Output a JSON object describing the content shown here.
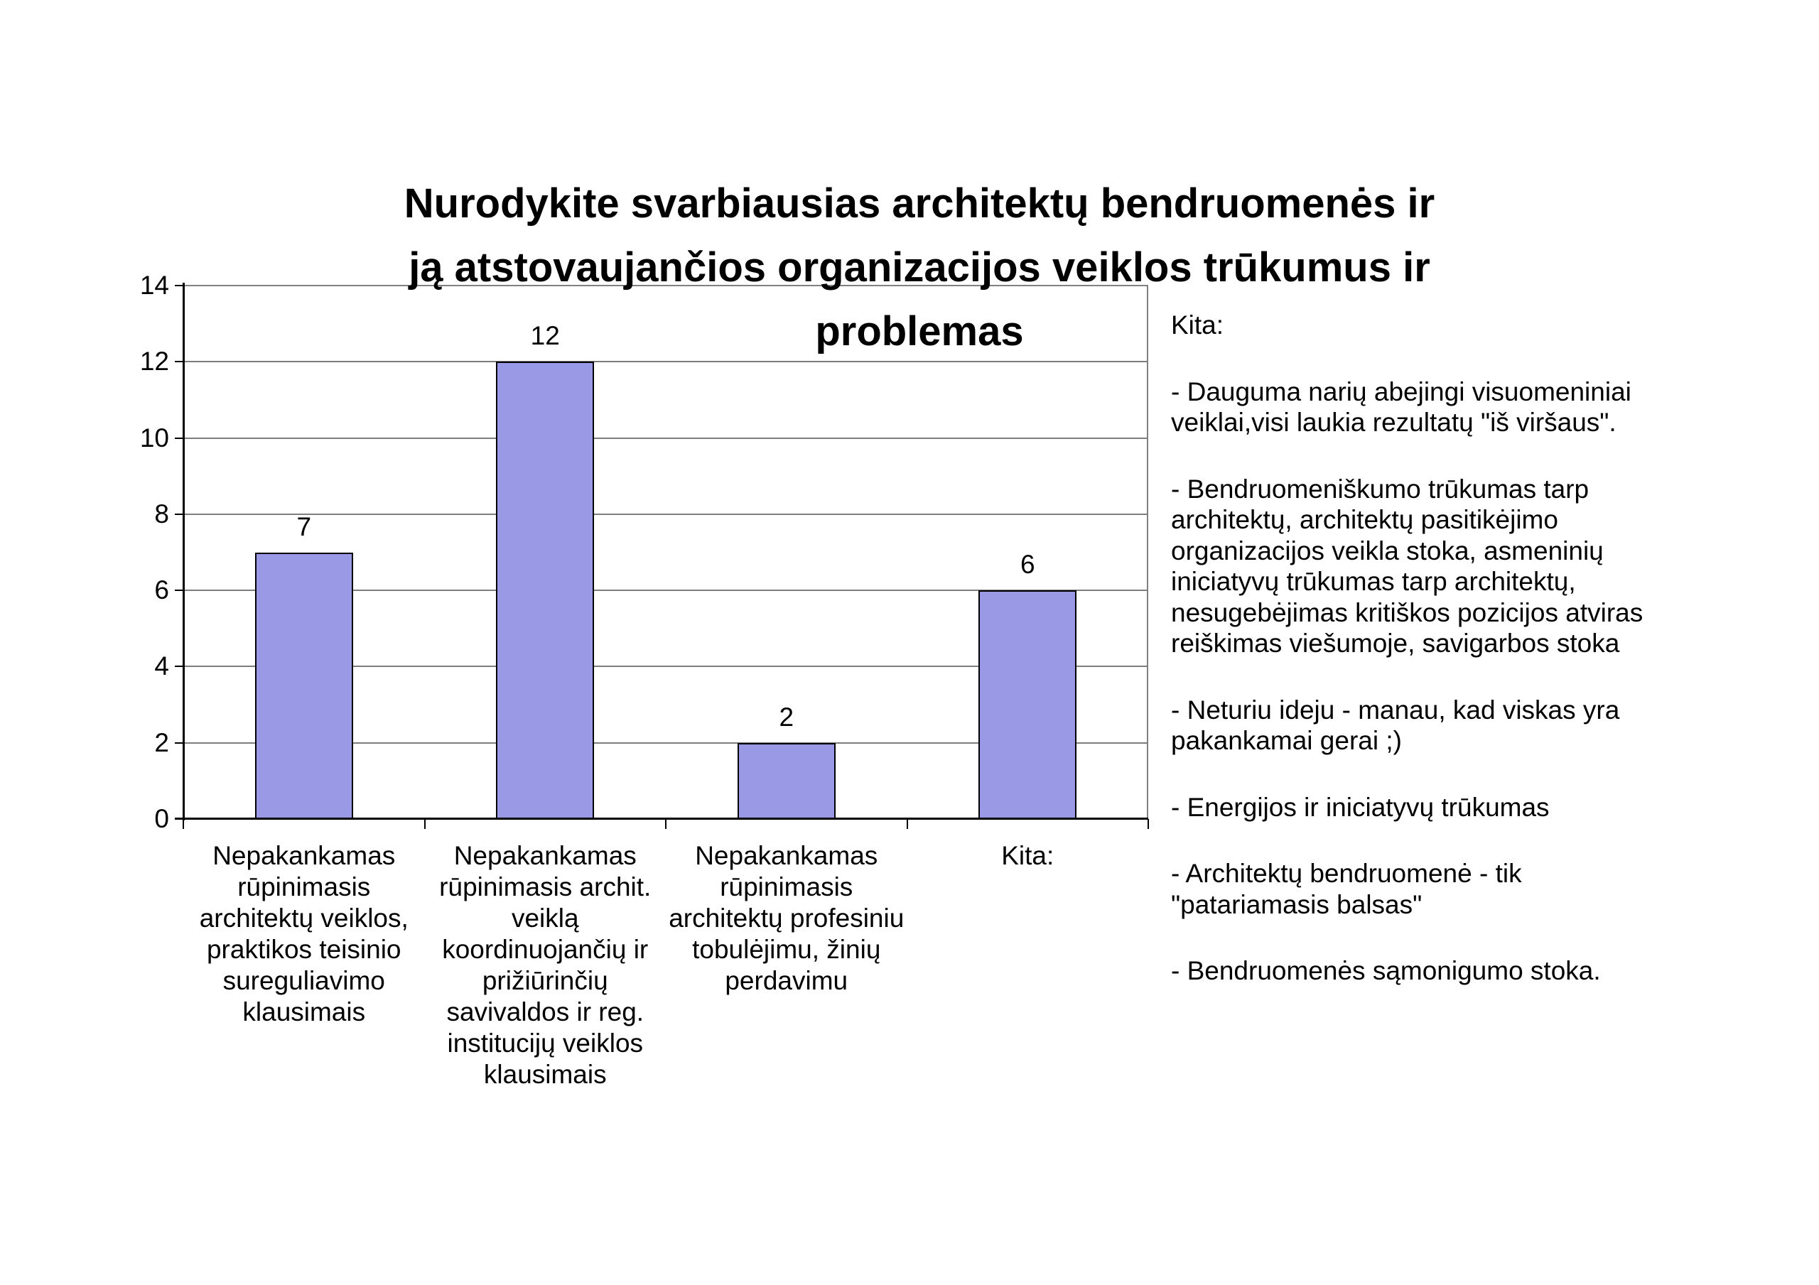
{
  "display": {
    "title": "Nurodykite svarbiausias architektų bendruomenės ir\nją atstovaujančios organizacijos veiklos trūkumus ir\nproblemas",
    "category_labels": [
      "Nepakankamas\nrūpinimasis\narchitektų veiklos,\npraktikos teisinio\nsureguliavimo\nklausimais",
      "Nepakankamas\nrūpinimasis archit.\nveiklą\nkoordinuojančių ir\nprižiūrinčių\nsavivaldos ir reg.\ninstitucijų veiklos\nklausimais",
      "Nepakankamas\nrūpinimasis\narchitektų profesiniu\ntobulėjimu, žinių\nperdavimu",
      "Kita:"
    ]
  },
  "chart_data": {
    "type": "bar",
    "title": "Nurodykite svarbiausias architektų bendruomenės ir ją atstovaujančios organizacijos veiklos trūkumus ir problemas",
    "categories": [
      "Nepakankamas rūpinimasis architektų veiklos, praktikos teisinio sureguliavimo klausimais",
      "Nepakankamas rūpinimasis archit. veiklą koordinuojančių ir prižiūrinčių savivaldos ir reg. institucijų veiklos klausimais",
      "Nepakankamas rūpinimasis architektų profesiniu tobulėjimu, žinių perdavimu",
      "Kita:"
    ],
    "values": [
      7,
      12,
      2,
      6
    ],
    "xlabel": "",
    "ylabel": "",
    "ylim": [
      0,
      14
    ],
    "yticks": [
      0,
      2,
      4,
      6,
      8,
      10,
      12,
      14
    ],
    "grid": "horizontal",
    "legend": "none",
    "bar_color": "#9999E6",
    "bar_border_color": "#000000",
    "gridline_color": "#808080",
    "axis_color": "#000000"
  },
  "kita_panel": {
    "heading": "Kita:",
    "notes": [
      "-  Dauguma narių abejingi visuomeniniai\nveiklai,visi laukia rezultatų \"iš viršaus\".",
      "- Bendruomeniškumo trūkumas tarp\narchitektų, architektų pasitikėjimo\norganizacijos veikla stoka, asmeninių\niniciatyvų trūkumas tarp architektų,\nnesugebėjimas kritiškos pozicijos atviras\nreiškimas viešumoje, savigarbos stoka",
      "- Neturiu ideju - manau, kad viskas yra\npakankamai gerai ;)",
      "- Energijos ir iniciatyvų trūkumas",
      "- Architektų bendruomenė - tik\n\"patariamasis balsas\"",
      "- Bendruomenės sąmonigumo stoka."
    ]
  }
}
